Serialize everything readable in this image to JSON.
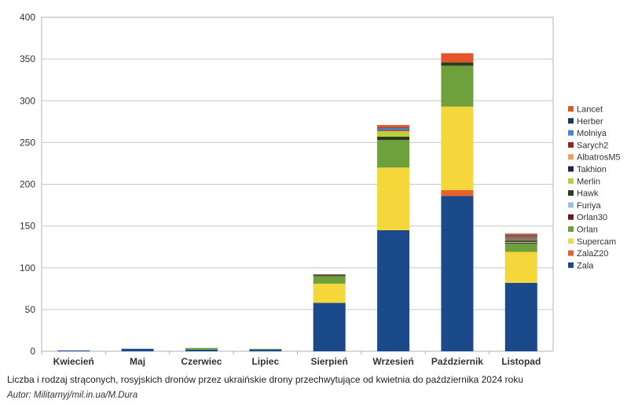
{
  "chart_data": {
    "type": "bar",
    "stacked": true,
    "title": "",
    "xlabel": "",
    "ylabel": "",
    "ylim": [
      0,
      400
    ],
    "yticks": [
      0,
      50,
      100,
      150,
      200,
      250,
      300,
      350,
      400
    ],
    "grid": true,
    "legend_position": "right",
    "categories": [
      "Kwiecień",
      "Maj",
      "Czerwiec",
      "Lipiec",
      "Sierpień",
      "Wrzesień",
      "Październik",
      "Listopad"
    ],
    "series": [
      {
        "name": "Zala",
        "color": "#1b4a8c",
        "values": [
          1,
          3,
          2,
          2,
          58,
          145,
          186,
          82
        ]
      },
      {
        "name": "ZalaZ20",
        "color": "#e8602c",
        "values": [
          0,
          0,
          0,
          0,
          0,
          0,
          7,
          0
        ]
      },
      {
        "name": "Supercam",
        "color": "#f5d73c",
        "values": [
          0,
          0,
          0,
          0,
          23,
          75,
          100,
          37
        ]
      },
      {
        "name": "Orlan",
        "color": "#6ea13b",
        "values": [
          0,
          0,
          2,
          1,
          9,
          33,
          49,
          10
        ]
      },
      {
        "name": "Orlan30",
        "color": "#6a1a1a",
        "values": [
          0,
          0,
          0,
          0,
          1,
          0,
          0,
          1
        ]
      },
      {
        "name": "Furiya",
        "color": "#90c3e8",
        "values": [
          0,
          0,
          0,
          0,
          0,
          0,
          0,
          1
        ]
      },
      {
        "name": "Hawk",
        "color": "#2e3a1c",
        "values": [
          0,
          0,
          0,
          0,
          1,
          4,
          4,
          2
        ]
      },
      {
        "name": "Merlin",
        "color": "#b6d13a",
        "values": [
          0,
          0,
          0,
          0,
          0,
          6,
          0,
          1
        ]
      },
      {
        "name": "Takhion",
        "color": "#24215a",
        "values": [
          0,
          0,
          0,
          0,
          0,
          0,
          0,
          1
        ]
      },
      {
        "name": "AlbatrosM5",
        "color": "#f0a250",
        "values": [
          0,
          0,
          0,
          0,
          0,
          1,
          0,
          1
        ]
      },
      {
        "name": "Sarych2",
        "color": "#a31c1c",
        "values": [
          0,
          0,
          0,
          0,
          0,
          1,
          0,
          1
        ]
      },
      {
        "name": "Molniya",
        "color": "#3c8ccf",
        "values": [
          0,
          0,
          0,
          0,
          0,
          2,
          0,
          1
        ]
      },
      {
        "name": "Herber",
        "color": "#163a5c",
        "values": [
          0,
          0,
          0,
          0,
          0,
          1,
          0,
          1
        ]
      },
      {
        "name": "Lancet",
        "color": "#e2562a",
        "values": [
          0,
          0,
          0,
          0,
          0,
          3,
          11,
          2
        ]
      }
    ]
  },
  "caption": "Liczba i rodzaj strąconych, rosyjskich dronów przez ukraińskie drony przechwytujące od kwietnia do października 2024 roku",
  "author": "Autor: Militarnyj/mil.in.ua/M.Dura"
}
